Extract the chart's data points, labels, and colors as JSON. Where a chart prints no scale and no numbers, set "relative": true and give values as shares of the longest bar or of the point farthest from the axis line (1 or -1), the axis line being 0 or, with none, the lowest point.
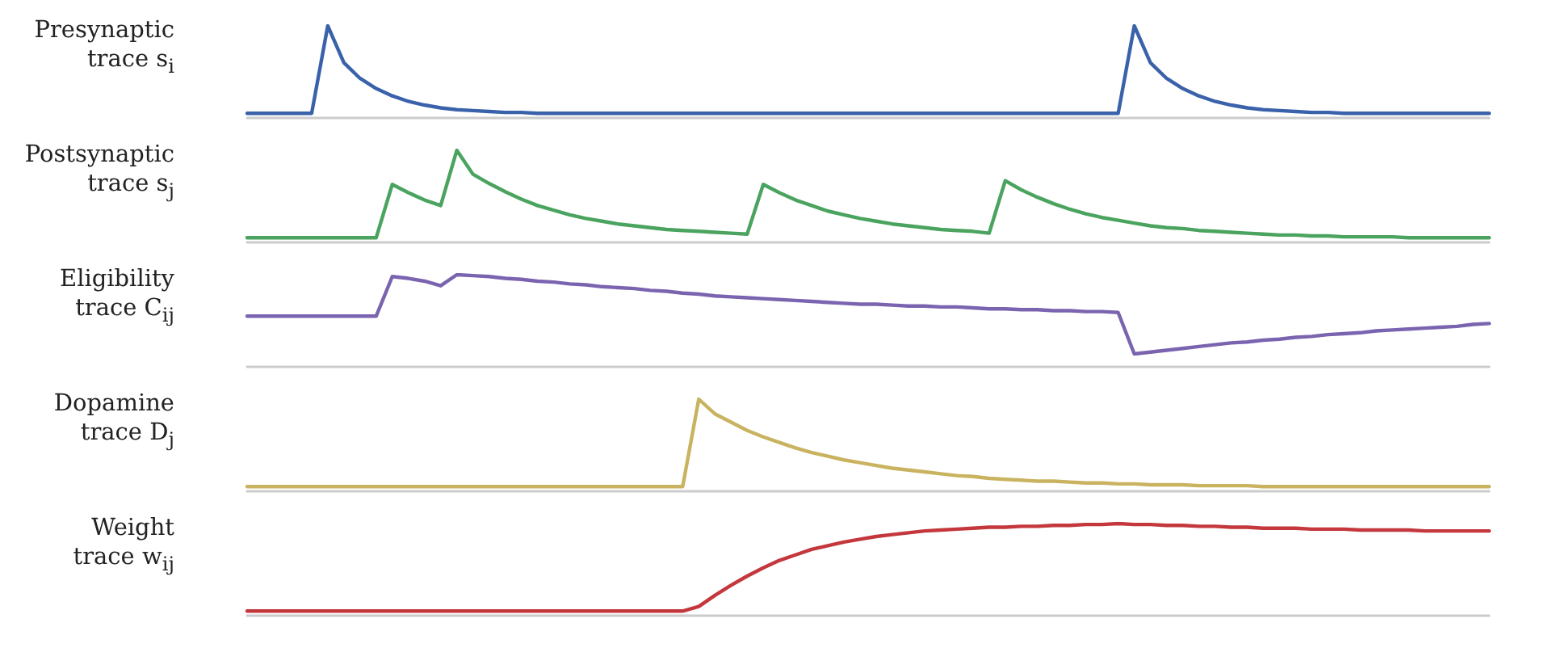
{
  "chart_data": [
    {
      "type": "line",
      "ylabel": "Presynaptic\ntrace s$_{i}$",
      "relative": true,
      "categories": [
        null,
        null,
        null,
        null,
        null,
        null,
        null,
        null,
        null,
        null,
        null,
        null,
        null,
        null,
        null,
        null,
        null,
        null,
        null,
        null,
        null,
        null,
        null,
        null,
        null,
        null,
        null,
        null,
        null,
        null,
        null,
        null,
        null,
        null,
        null,
        null,
        null,
        null,
        null,
        null,
        null,
        null,
        null,
        null,
        null,
        null,
        null,
        null,
        null,
        null,
        null,
        null,
        null,
        null,
        null,
        null,
        null,
        null,
        null,
        null,
        null,
        null,
        null,
        null,
        null,
        null,
        null,
        null,
        null,
        null,
        null,
        null,
        null,
        null,
        null,
        null,
        null,
        null
      ],
      "series": [
        {
          "color": "#3a62aa",
          "values": [
            0.05,
            0.05,
            0.05,
            0.05,
            0.05,
            1.0,
            0.6,
            0.43,
            0.32,
            0.24,
            0.18,
            0.14,
            0.11,
            0.09,
            0.08,
            0.07,
            0.06,
            0.06,
            0.05,
            0.05,
            0.05,
            0.05,
            0.05,
            0.05,
            0.05,
            0.05,
            0.05,
            0.05,
            0.05,
            0.05,
            0.05,
            0.05,
            0.05,
            0.05,
            0.05,
            0.05,
            0.05,
            0.05,
            0.05,
            0.05,
            0.05,
            0.05,
            0.05,
            0.05,
            0.05,
            0.05,
            0.05,
            0.05,
            0.05,
            0.05,
            0.05,
            0.05,
            0.05,
            0.05,
            0.05,
            1.0,
            0.6,
            0.43,
            0.32,
            0.24,
            0.18,
            0.14,
            0.11,
            0.09,
            0.08,
            0.07,
            0.06,
            0.06,
            0.05,
            0.05,
            0.05,
            0.05,
            0.05,
            0.05,
            0.05,
            0.05,
            0.05,
            0.05
          ]
        }
      ]
    },
    {
      "type": "line",
      "ylabel": "Postsynaptic\ntrace s$_{j}$",
      "relative": true,
      "categories": [
        null,
        null,
        null,
        null,
        null,
        null,
        null,
        null,
        null,
        null,
        null,
        null,
        null,
        null,
        null,
        null,
        null,
        null,
        null,
        null,
        null,
        null,
        null,
        null,
        null,
        null,
        null,
        null,
        null,
        null,
        null,
        null,
        null,
        null,
        null,
        null,
        null,
        null,
        null,
        null,
        null,
        null,
        null,
        null,
        null,
        null,
        null,
        null,
        null,
        null,
        null,
        null,
        null,
        null,
        null,
        null,
        null,
        null,
        null,
        null,
        null,
        null,
        null,
        null,
        null,
        null,
        null,
        null,
        null,
        null,
        null,
        null,
        null,
        null,
        null,
        null,
        null,
        null
      ],
      "series": [
        {
          "color": "#4aa35e",
          "values": [
            0.05,
            0.05,
            0.05,
            0.05,
            0.05,
            0.05,
            0.05,
            0.05,
            0.05,
            0.63,
            0.54,
            0.46,
            0.4,
            1.0,
            0.74,
            0.64,
            0.55,
            0.47,
            0.4,
            0.35,
            0.3,
            0.26,
            0.23,
            0.2,
            0.18,
            0.16,
            0.14,
            0.13,
            0.12,
            0.11,
            0.1,
            0.09,
            0.63,
            0.54,
            0.46,
            0.4,
            0.34,
            0.3,
            0.26,
            0.23,
            0.2,
            0.18,
            0.16,
            0.14,
            0.13,
            0.12,
            0.1,
            0.67,
            0.57,
            0.49,
            0.42,
            0.36,
            0.31,
            0.27,
            0.24,
            0.21,
            0.18,
            0.16,
            0.15,
            0.13,
            0.12,
            0.11,
            0.1,
            0.09,
            0.08,
            0.08,
            0.07,
            0.07,
            0.06,
            0.06,
            0.06,
            0.06,
            0.05,
            0.05,
            0.05,
            0.05,
            0.05,
            0.05
          ]
        }
      ]
    },
    {
      "type": "line",
      "ylabel": "Eligibility\ntrace C$_{ij}$",
      "relative": true,
      "categories": [
        null,
        null,
        null,
        null,
        null,
        null,
        null,
        null,
        null,
        null,
        null,
        null,
        null,
        null,
        null,
        null,
        null,
        null,
        null,
        null,
        null,
        null,
        null,
        null,
        null,
        null,
        null,
        null,
        null,
        null,
        null,
        null,
        null,
        null,
        null,
        null,
        null,
        null,
        null,
        null,
        null,
        null,
        null,
        null,
        null,
        null,
        null,
        null,
        null,
        null,
        null,
        null,
        null,
        null,
        null,
        null,
        null,
        null,
        null,
        null,
        null,
        null,
        null,
        null,
        null,
        null,
        null,
        null,
        null,
        null,
        null,
        null,
        null,
        null,
        null,
        null,
        null,
        null
      ],
      "series": [
        {
          "color": "#7a64b0",
          "values": [
            0.55,
            0.55,
            0.55,
            0.55,
            0.55,
            0.55,
            0.55,
            0.55,
            0.55,
            0.98,
            0.96,
            0.93,
            0.88,
            1.0,
            0.99,
            0.98,
            0.96,
            0.95,
            0.93,
            0.92,
            0.9,
            0.89,
            0.87,
            0.86,
            0.85,
            0.83,
            0.82,
            0.8,
            0.79,
            0.77,
            0.76,
            0.75,
            0.74,
            0.73,
            0.72,
            0.71,
            0.7,
            0.69,
            0.68,
            0.68,
            0.67,
            0.66,
            0.66,
            0.65,
            0.65,
            0.64,
            0.63,
            0.63,
            0.62,
            0.62,
            0.61,
            0.61,
            0.6,
            0.6,
            0.59,
            0.14,
            0.16,
            0.18,
            0.2,
            0.22,
            0.24,
            0.26,
            0.27,
            0.29,
            0.3,
            0.32,
            0.33,
            0.35,
            0.36,
            0.37,
            0.39,
            0.4,
            0.41,
            0.42,
            0.43,
            0.44,
            0.46,
            0.47
          ]
        }
      ]
    },
    {
      "type": "line",
      "ylabel": "Dopamine\ntrace D$_{j}$",
      "relative": true,
      "categories": [
        null,
        null,
        null,
        null,
        null,
        null,
        null,
        null,
        null,
        null,
        null,
        null,
        null,
        null,
        null,
        null,
        null,
        null,
        null,
        null,
        null,
        null,
        null,
        null,
        null,
        null,
        null,
        null,
        null,
        null,
        null,
        null,
        null,
        null,
        null,
        null,
        null,
        null,
        null,
        null,
        null,
        null,
        null,
        null,
        null,
        null,
        null,
        null,
        null,
        null,
        null,
        null,
        null,
        null,
        null,
        null,
        null,
        null,
        null,
        null,
        null,
        null,
        null,
        null,
        null,
        null,
        null,
        null,
        null,
        null,
        null,
        null,
        null,
        null,
        null,
        null,
        null,
        null
      ],
      "series": [
        {
          "color": "#c9b360",
          "values": [
            0.05,
            0.05,
            0.05,
            0.05,
            0.05,
            0.05,
            0.05,
            0.05,
            0.05,
            0.05,
            0.05,
            0.05,
            0.05,
            0.05,
            0.05,
            0.05,
            0.05,
            0.05,
            0.05,
            0.05,
            0.05,
            0.05,
            0.05,
            0.05,
            0.05,
            0.05,
            0.05,
            0.05,
            1.0,
            0.84,
            0.75,
            0.66,
            0.59,
            0.53,
            0.47,
            0.42,
            0.38,
            0.34,
            0.31,
            0.28,
            0.25,
            0.23,
            0.21,
            0.19,
            0.17,
            0.16,
            0.14,
            0.13,
            0.12,
            0.11,
            0.11,
            0.1,
            0.09,
            0.09,
            0.08,
            0.08,
            0.07,
            0.07,
            0.07,
            0.06,
            0.06,
            0.06,
            0.06,
            0.05,
            0.05,
            0.05,
            0.05,
            0.05,
            0.05,
            0.05,
            0.05,
            0.05,
            0.05,
            0.05,
            0.05,
            0.05,
            0.05,
            0.05
          ]
        }
      ]
    },
    {
      "type": "line",
      "ylabel": "Weight\ntrace w$_{ij}$",
      "relative": true,
      "categories": [
        null,
        null,
        null,
        null,
        null,
        null,
        null,
        null,
        null,
        null,
        null,
        null,
        null,
        null,
        null,
        null,
        null,
        null,
        null,
        null,
        null,
        null,
        null,
        null,
        null,
        null,
        null,
        null,
        null,
        null,
        null,
        null,
        null,
        null,
        null,
        null,
        null,
        null,
        null,
        null,
        null,
        null,
        null,
        null,
        null,
        null,
        null,
        null,
        null,
        null,
        null,
        null,
        null,
        null,
        null,
        null,
        null,
        null,
        null,
        null,
        null,
        null,
        null,
        null,
        null,
        null,
        null,
        null,
        null,
        null,
        null,
        null,
        null,
        null,
        null,
        null,
        null,
        null
      ],
      "series": [
        {
          "color": "#c4373c",
          "values": [
            0.05,
            0.05,
            0.05,
            0.05,
            0.05,
            0.05,
            0.05,
            0.05,
            0.05,
            0.05,
            0.05,
            0.05,
            0.05,
            0.05,
            0.05,
            0.05,
            0.05,
            0.05,
            0.05,
            0.05,
            0.05,
            0.05,
            0.05,
            0.05,
            0.05,
            0.05,
            0.05,
            0.05,
            0.1,
            0.22,
            0.33,
            0.43,
            0.52,
            0.6,
            0.66,
            0.72,
            0.76,
            0.8,
            0.83,
            0.86,
            0.88,
            0.9,
            0.92,
            0.93,
            0.94,
            0.95,
            0.96,
            0.96,
            0.97,
            0.97,
            0.98,
            0.98,
            0.99,
            0.99,
            1.0,
            0.99,
            0.99,
            0.98,
            0.98,
            0.97,
            0.97,
            0.96,
            0.96,
            0.95,
            0.95,
            0.95,
            0.94,
            0.94,
            0.94,
            0.93,
            0.93,
            0.93,
            0.93,
            0.92,
            0.92,
            0.92,
            0.92,
            0.92
          ]
        }
      ]
    }
  ]
}
